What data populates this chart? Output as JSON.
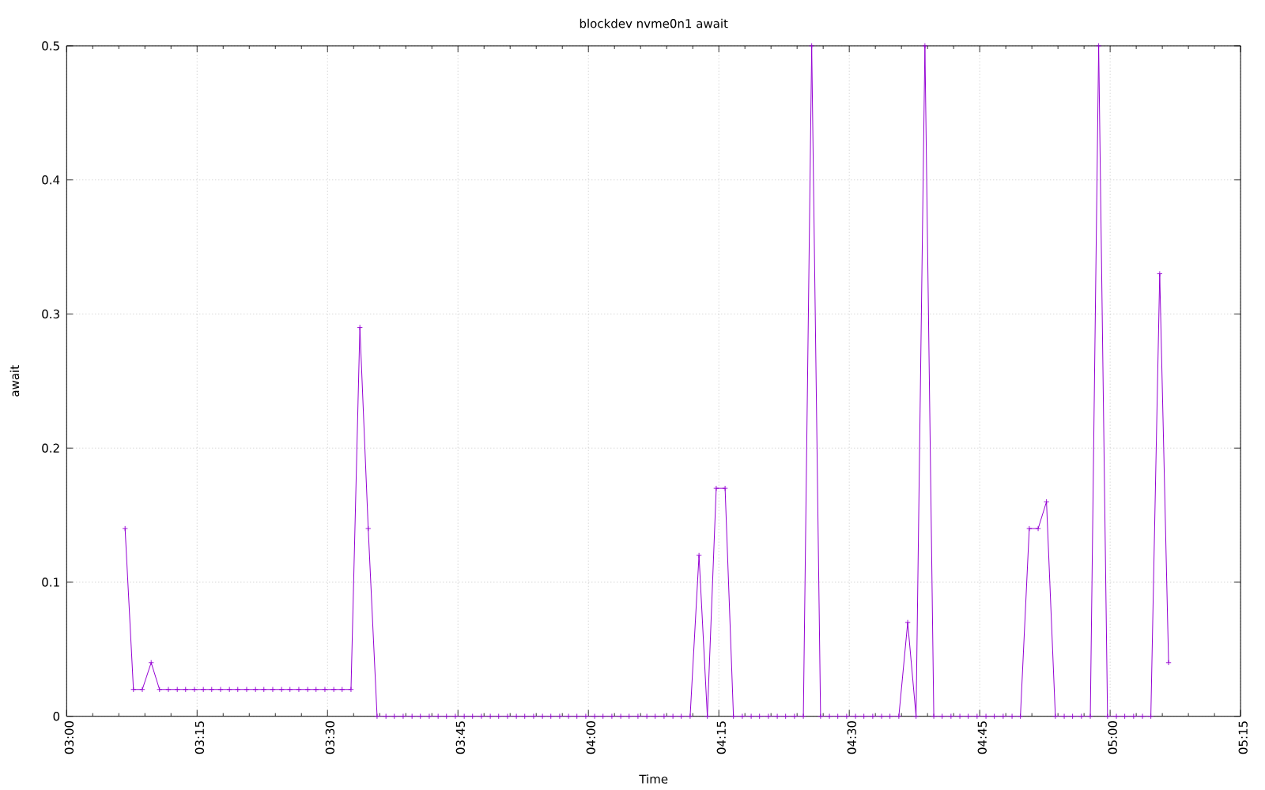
{
  "chart_data": {
    "type": "line",
    "title": "blockdev nvme0n1 await",
    "xlabel": "Time",
    "ylabel": "await",
    "color": "#9400d3",
    "marker": "cross",
    "line_style": "solid",
    "grid": true,
    "xlim": [
      3,
      5.25
    ],
    "ylim": [
      0,
      0.5
    ],
    "xticks": [
      {
        "value": 3,
        "label": "03:00"
      },
      {
        "value": 3.25,
        "label": "03:15"
      },
      {
        "value": 3.5,
        "label": "03:30"
      },
      {
        "value": 3.75,
        "label": "03:45"
      },
      {
        "value": 4,
        "label": "04:00"
      },
      {
        "value": 4.25,
        "label": "04:15"
      },
      {
        "value": 4.5,
        "label": "04:30"
      },
      {
        "value": 4.75,
        "label": "04:45"
      },
      {
        "value": 5,
        "label": "05:00"
      },
      {
        "value": 5.25,
        "label": "05:15"
      }
    ],
    "yticks": [
      0,
      0.1,
      0.2,
      0.3,
      0.4,
      0.5
    ],
    "x": [
      3.112,
      3.128,
      3.145,
      3.162,
      3.178,
      3.195,
      3.212,
      3.228,
      3.245,
      3.262,
      3.278,
      3.295,
      3.312,
      3.328,
      3.345,
      3.362,
      3.378,
      3.395,
      3.412,
      3.428,
      3.445,
      3.462,
      3.478,
      3.495,
      3.512,
      3.528,
      3.545,
      3.562,
      3.578,
      3.595,
      3.612,
      3.628,
      3.645,
      3.662,
      3.678,
      3.695,
      3.712,
      3.728,
      3.745,
      3.762,
      3.778,
      3.795,
      3.812,
      3.828,
      3.845,
      3.862,
      3.878,
      3.895,
      3.912,
      3.928,
      3.945,
      3.962,
      3.978,
      3.995,
      4.012,
      4.028,
      4.045,
      4.062,
      4.078,
      4.095,
      4.112,
      4.128,
      4.145,
      4.162,
      4.178,
      4.195,
      4.212,
      4.228,
      4.245,
      4.262,
      4.278,
      4.295,
      4.312,
      4.328,
      4.345,
      4.362,
      4.378,
      4.395,
      4.412,
      4.428,
      4.445,
      4.462,
      4.478,
      4.495,
      4.512,
      4.528,
      4.545,
      4.562,
      4.578,
      4.595,
      4.612,
      4.628,
      4.645,
      4.662,
      4.678,
      4.695,
      4.712,
      4.728,
      4.745,
      4.762,
      4.778,
      4.795,
      4.812,
      4.828,
      4.845,
      4.862,
      4.878,
      4.895,
      4.912,
      4.928,
      4.945,
      4.962,
      4.978,
      4.995,
      5.012,
      5.028,
      5.045,
      5.062,
      5.078,
      5.095,
      5.112
    ],
    "values": [
      0.14,
      0.02,
      0.02,
      0.04,
      0.02,
      0.02,
      0.02,
      0.02,
      0.02,
      0.02,
      0.02,
      0.02,
      0.02,
      0.02,
      0.02,
      0.02,
      0.02,
      0.02,
      0.02,
      0.02,
      0.02,
      0.02,
      0.02,
      0.02,
      0.02,
      0.02,
      0.02,
      0.29,
      0.14,
      0,
      0,
      0,
      0,
      0,
      0,
      0,
      0,
      0,
      0,
      0,
      0,
      0,
      0,
      0,
      0,
      0,
      0,
      0,
      0,
      0,
      0,
      0,
      0,
      0,
      0,
      0,
      0,
      0,
      0,
      0,
      0,
      0,
      0,
      0,
      0,
      0,
      0.12,
      0,
      0.17,
      0.17,
      0,
      0,
      0,
      0,
      0,
      0,
      0,
      0,
      0,
      0.5,
      0,
      0,
      0,
      0,
      0,
      0,
      0,
      0,
      0,
      0,
      0.07,
      0,
      0.5,
      0,
      0,
      0,
      0,
      0,
      0,
      0,
      0,
      0,
      0,
      0,
      0.14,
      0.14,
      0.16,
      0,
      0,
      0,
      0,
      0,
      0.5,
      0,
      0,
      0,
      0,
      0,
      0,
      0.33,
      0.04
    ]
  }
}
